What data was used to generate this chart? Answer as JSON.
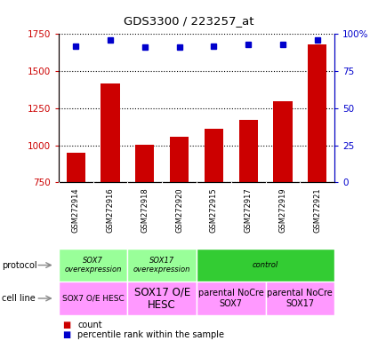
{
  "title": "GDS3300 / 223257_at",
  "samples": [
    "GSM272914",
    "GSM272916",
    "GSM272918",
    "GSM272920",
    "GSM272915",
    "GSM272917",
    "GSM272919",
    "GSM272921"
  ],
  "counts": [
    950,
    1420,
    1005,
    1055,
    1110,
    1170,
    1300,
    1680
  ],
  "percentile_ranks": [
    92,
    96,
    91,
    91,
    92,
    93,
    93,
    96
  ],
  "ylim_left": [
    750,
    1750
  ],
  "ylim_right": [
    0,
    100
  ],
  "yticks_left": [
    750,
    1000,
    1250,
    1500,
    1750
  ],
  "yticks_right": [
    0,
    25,
    50,
    75,
    100
  ],
  "bar_color": "#cc0000",
  "dot_color": "#0000cc",
  "protocol_labels": [
    {
      "text": "SOX7\noverexpression",
      "span": [
        0,
        2
      ],
      "color": "#99ff99"
    },
    {
      "text": "SOX17\noverexpression",
      "span": [
        2,
        4
      ],
      "color": "#99ff99"
    },
    {
      "text": "control",
      "span": [
        4,
        8
      ],
      "color": "#33cc33"
    }
  ],
  "cellline_labels": [
    {
      "text": "SOX7 O/E HESC",
      "span": [
        0,
        2
      ],
      "color": "#ff99ff",
      "fontsize": 6.5
    },
    {
      "text": "SOX17 O/E\nHESC",
      "span": [
        2,
        4
      ],
      "color": "#ff99ff",
      "fontsize": 8.5
    },
    {
      "text": "parental NoCre\nSOX7",
      "span": [
        4,
        6
      ],
      "color": "#ff99ff",
      "fontsize": 7
    },
    {
      "text": "parental NoCre\nSOX17",
      "span": [
        6,
        8
      ],
      "color": "#ff99ff",
      "fontsize": 7
    }
  ],
  "bg_color": "#ffffff",
  "tick_area_color": "#cccccc",
  "grid_color": "#000000",
  "left_label_color": "#cc0000",
  "right_label_color": "#0000cc"
}
